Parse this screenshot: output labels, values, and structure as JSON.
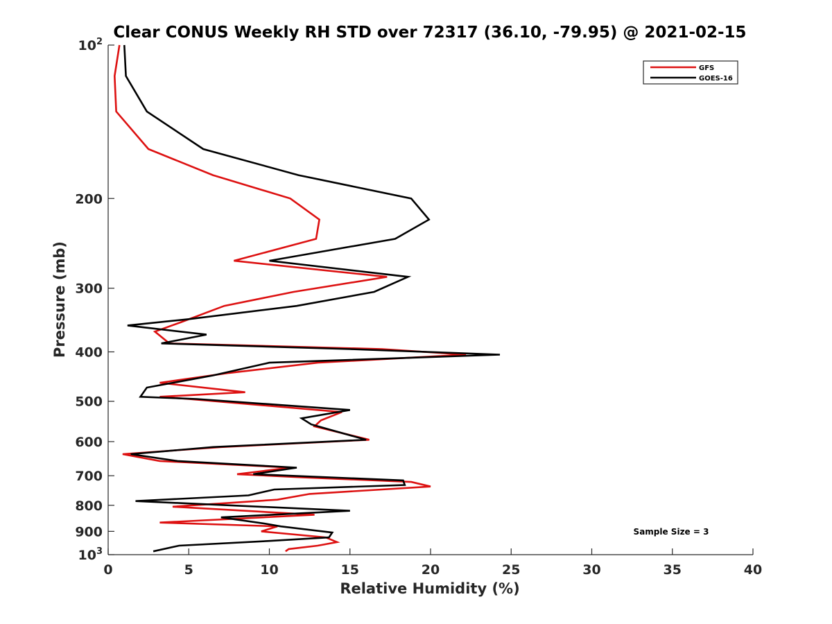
{
  "chart_data": {
    "type": "line",
    "title": "Clear CONUS Weekly RH STD over 72317 (36.10, -79.95) @ 2021-02-15",
    "xlabel": "Relative Humidity (%)",
    "ylabel": "Pressure (mb)",
    "xlim": [
      0,
      40
    ],
    "ylim": [
      100,
      1000
    ],
    "y_scale": "log",
    "y_reversed": true,
    "x_ticks": [
      "0",
      "5",
      "10",
      "15",
      "20",
      "25",
      "30",
      "35",
      "40"
    ],
    "x_tick_values": [
      0,
      5,
      10,
      15,
      20,
      25,
      30,
      35,
      40
    ],
    "y_ticks": [
      {
        "value": 100,
        "base": "10",
        "sup": "2"
      },
      {
        "value": 200,
        "base": "200",
        "sup": ""
      },
      {
        "value": 300,
        "base": "300",
        "sup": ""
      },
      {
        "value": 400,
        "base": "400",
        "sup": ""
      },
      {
        "value": 500,
        "base": "500",
        "sup": ""
      },
      {
        "value": 600,
        "base": "600",
        "sup": ""
      },
      {
        "value": 700,
        "base": "700",
        "sup": ""
      },
      {
        "value": 800,
        "base": "800",
        "sup": ""
      },
      {
        "value": 900,
        "base": "900",
        "sup": ""
      },
      {
        "value": 1000,
        "base": "10",
        "sup": "3"
      }
    ],
    "grid": false,
    "legend_position": "top-right",
    "annotation": "Sample Size = 3",
    "series": [
      {
        "name": "GFS",
        "color": "#dd1111",
        "points": [
          [
            0.7,
            100
          ],
          [
            0.4,
            115
          ],
          [
            0.5,
            135
          ],
          [
            2.5,
            160
          ],
          [
            6.5,
            180
          ],
          [
            11.3,
            200
          ],
          [
            13.1,
            220
          ],
          [
            12.9,
            240
          ],
          [
            7.8,
            265
          ],
          [
            17.3,
            285
          ],
          [
            11.5,
            305
          ],
          [
            7.2,
            325
          ],
          [
            4.5,
            350
          ],
          [
            2.9,
            365
          ],
          [
            3.8,
            385
          ],
          [
            17.0,
            395
          ],
          [
            22.2,
            405
          ],
          [
            13.0,
            420
          ],
          [
            7.5,
            440
          ],
          [
            3.2,
            460
          ],
          [
            8.5,
            480
          ],
          [
            3.2,
            490
          ],
          [
            5.0,
            495
          ],
          [
            14.5,
            525
          ],
          [
            13.2,
            545
          ],
          [
            12.8,
            560
          ],
          [
            16.2,
            595
          ],
          [
            7.0,
            615
          ],
          [
            0.9,
            635
          ],
          [
            3.2,
            655
          ],
          [
            11.3,
            675
          ],
          [
            8.0,
            695
          ],
          [
            12.0,
            705
          ],
          [
            18.8,
            720
          ],
          [
            20.0,
            735
          ],
          [
            12.5,
            760
          ],
          [
            10.5,
            780
          ],
          [
            4.0,
            805
          ],
          [
            12.8,
            835
          ],
          [
            3.2,
            865
          ],
          [
            10.5,
            880
          ],
          [
            9.5,
            900
          ],
          [
            13.5,
            925
          ],
          [
            14.2,
            945
          ],
          [
            13.0,
            960
          ],
          [
            11.2,
            975
          ],
          [
            11.0,
            985
          ]
        ]
      },
      {
        "name": "GOES-16",
        "color": "#000000",
        "points": [
          [
            1.0,
            100
          ],
          [
            1.1,
            115
          ],
          [
            2.4,
            135
          ],
          [
            5.9,
            160
          ],
          [
            11.8,
            180
          ],
          [
            18.8,
            200
          ],
          [
            19.9,
            220
          ],
          [
            17.8,
            240
          ],
          [
            10.0,
            265
          ],
          [
            18.6,
            285
          ],
          [
            16.5,
            305
          ],
          [
            11.7,
            325
          ],
          [
            5.0,
            345
          ],
          [
            1.2,
            355
          ],
          [
            6.1,
            370
          ],
          [
            3.3,
            385
          ],
          [
            15.0,
            395
          ],
          [
            24.3,
            405
          ],
          [
            10.0,
            420
          ],
          [
            6.5,
            445
          ],
          [
            2.4,
            470
          ],
          [
            2.0,
            490
          ],
          [
            5.5,
            495
          ],
          [
            15.0,
            520
          ],
          [
            12.0,
            540
          ],
          [
            12.6,
            555
          ],
          [
            16.0,
            595
          ],
          [
            6.5,
            615
          ],
          [
            1.4,
            635
          ],
          [
            4.3,
            655
          ],
          [
            11.7,
            675
          ],
          [
            9.0,
            695
          ],
          [
            18.3,
            715
          ],
          [
            18.4,
            730
          ],
          [
            10.3,
            745
          ],
          [
            8.7,
            765
          ],
          [
            1.7,
            785
          ],
          [
            15.0,
            820
          ],
          [
            7.0,
            845
          ],
          [
            9.8,
            870
          ],
          [
            10.7,
            880
          ],
          [
            13.9,
            905
          ],
          [
            13.7,
            925
          ],
          [
            10.0,
            940
          ],
          [
            4.4,
            960
          ],
          [
            2.8,
            985
          ]
        ]
      }
    ]
  }
}
